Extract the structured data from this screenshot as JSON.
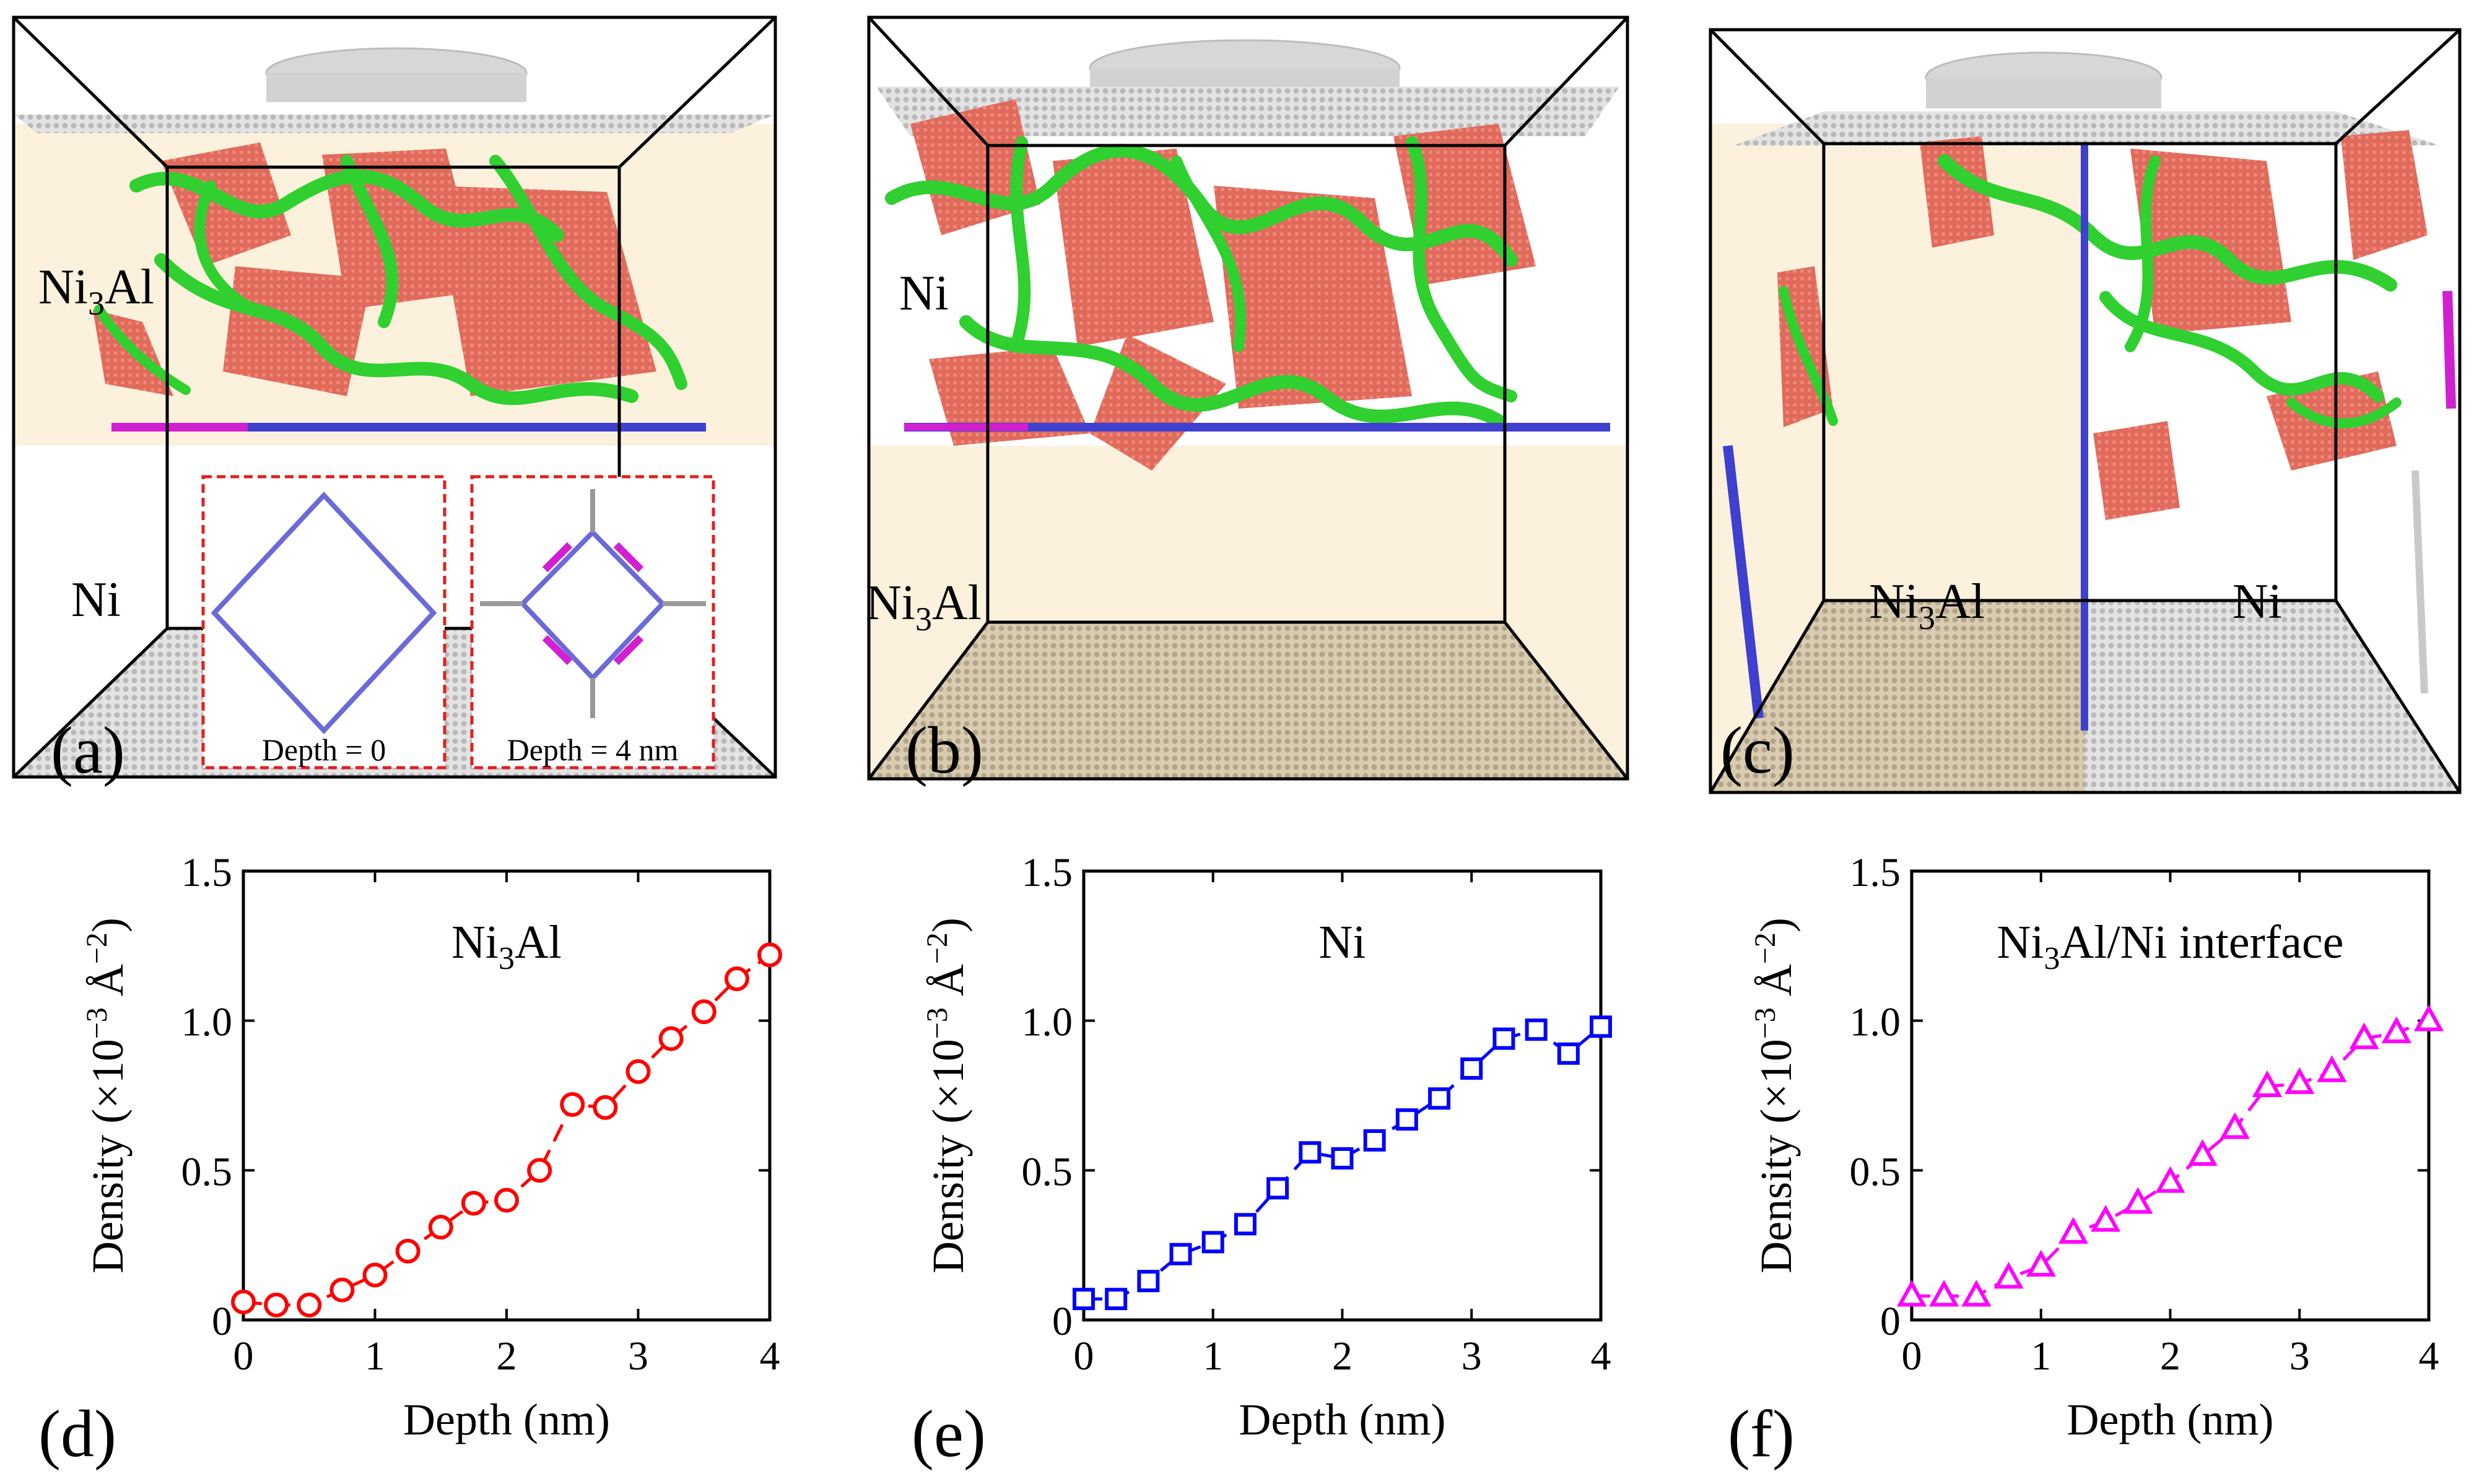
{
  "figure": {
    "panel_a": {
      "letter": "(a)",
      "label_top_base": "Ni",
      "label_top_sub": "3",
      "label_top_tail": "Al",
      "label_bottom": "Ni",
      "inset_left_caption": "Depth = 0",
      "inset_right_caption": "Depth = 4 nm"
    },
    "panel_b": {
      "letter": "(b)",
      "label_top": "Ni",
      "label_bottom_base": "Ni",
      "label_bottom_sub": "3",
      "label_bottom_tail": "Al"
    },
    "panel_c": {
      "letter": "(c)",
      "label_left_base": "Ni",
      "label_left_sub": "3",
      "label_left_tail": "Al",
      "label_right": "Ni"
    },
    "colors": {
      "ni3al_region": "#fbf1dc",
      "stacking_fault": "#e06a5c",
      "dislocation": "#2fd02f",
      "mesh": "#c9c9c9"
    }
  },
  "chart_data": [
    {
      "type": "line",
      "letter": "(d)",
      "title_base": "Ni",
      "title_sub": "3",
      "title_tail": "Al",
      "xlabel": "Depth (nm)",
      "ylabel": "Density (×10",
      "ylabel_exp": "−3",
      "ylabel_unit": " Å",
      "ylabel_unit_exp": "−2",
      "ylabel_close": ")",
      "xlim": [
        0,
        4
      ],
      "ylim": [
        0,
        1.5
      ],
      "xticks": [
        0,
        1,
        2,
        3,
        4
      ],
      "yticks": [
        0,
        0.5,
        1.0,
        1.5
      ],
      "ytick_labels": [
        "0",
        "0.5",
        "1.0",
        "1.5"
      ],
      "marker": "circle",
      "color": "#ff0000",
      "x": [
        0,
        0.25,
        0.5,
        0.75,
        1.0,
        1.25,
        1.5,
        1.75,
        2.0,
        2.25,
        2.5,
        2.75,
        3.0,
        3.25,
        3.5,
        3.75,
        4.0
      ],
      "y": [
        0.06,
        0.05,
        0.05,
        0.1,
        0.15,
        0.23,
        0.31,
        0.39,
        0.4,
        0.5,
        0.72,
        0.71,
        0.83,
        0.94,
        1.03,
        1.14,
        1.22
      ]
    },
    {
      "type": "line",
      "letter": "(e)",
      "title_base": "Ni",
      "title_sub": "",
      "title_tail": "",
      "xlabel": "Depth (nm)",
      "ylabel": "Density (×10",
      "ylabel_exp": "−3",
      "ylabel_unit": " Å",
      "ylabel_unit_exp": "−2",
      "ylabel_close": ")",
      "xlim": [
        0,
        4
      ],
      "ylim": [
        0,
        1.5
      ],
      "xticks": [
        0,
        1,
        2,
        3,
        4
      ],
      "yticks": [
        0,
        0.5,
        1.0,
        1.5
      ],
      "ytick_labels": [
        "0",
        "0.5",
        "1.0",
        "1.5"
      ],
      "marker": "square",
      "color": "#0000ff",
      "x": [
        0,
        0.25,
        0.5,
        0.75,
        1.0,
        1.25,
        1.5,
        1.75,
        2.0,
        2.25,
        2.5,
        2.75,
        3.0,
        3.25,
        3.5,
        3.75,
        4.0
      ],
      "y": [
        0.07,
        0.07,
        0.13,
        0.22,
        0.26,
        0.32,
        0.44,
        0.56,
        0.54,
        0.6,
        0.67,
        0.74,
        0.84,
        0.94,
        0.97,
        0.89,
        0.98
      ]
    },
    {
      "type": "line",
      "letter": "(f)",
      "title_base": "Ni",
      "title_sub": "3",
      "title_tail": "Al/Ni interface",
      "xlabel": "Depth (nm)",
      "ylabel": "Density (×10",
      "ylabel_exp": "−3",
      "ylabel_unit": " Å",
      "ylabel_unit_exp": "−2",
      "ylabel_close": ")",
      "xlim": [
        0,
        4
      ],
      "ylim": [
        0,
        1.5
      ],
      "xticks": [
        0,
        1,
        2,
        3,
        4
      ],
      "yticks": [
        0,
        0.5,
        1.0,
        1.5
      ],
      "ytick_labels": [
        "0",
        "0.5",
        "1.0",
        "1.5"
      ],
      "marker": "triangle",
      "color": "#ff00ff",
      "x": [
        0,
        0.25,
        0.5,
        0.75,
        1.0,
        1.25,
        1.5,
        1.75,
        2.0,
        2.25,
        2.5,
        2.75,
        3.0,
        3.25,
        3.5,
        3.75,
        4.0
      ],
      "y": [
        0.08,
        0.08,
        0.08,
        0.14,
        0.18,
        0.29,
        0.33,
        0.39,
        0.46,
        0.55,
        0.64,
        0.78,
        0.79,
        0.83,
        0.94,
        0.96,
        1.0
      ]
    }
  ]
}
